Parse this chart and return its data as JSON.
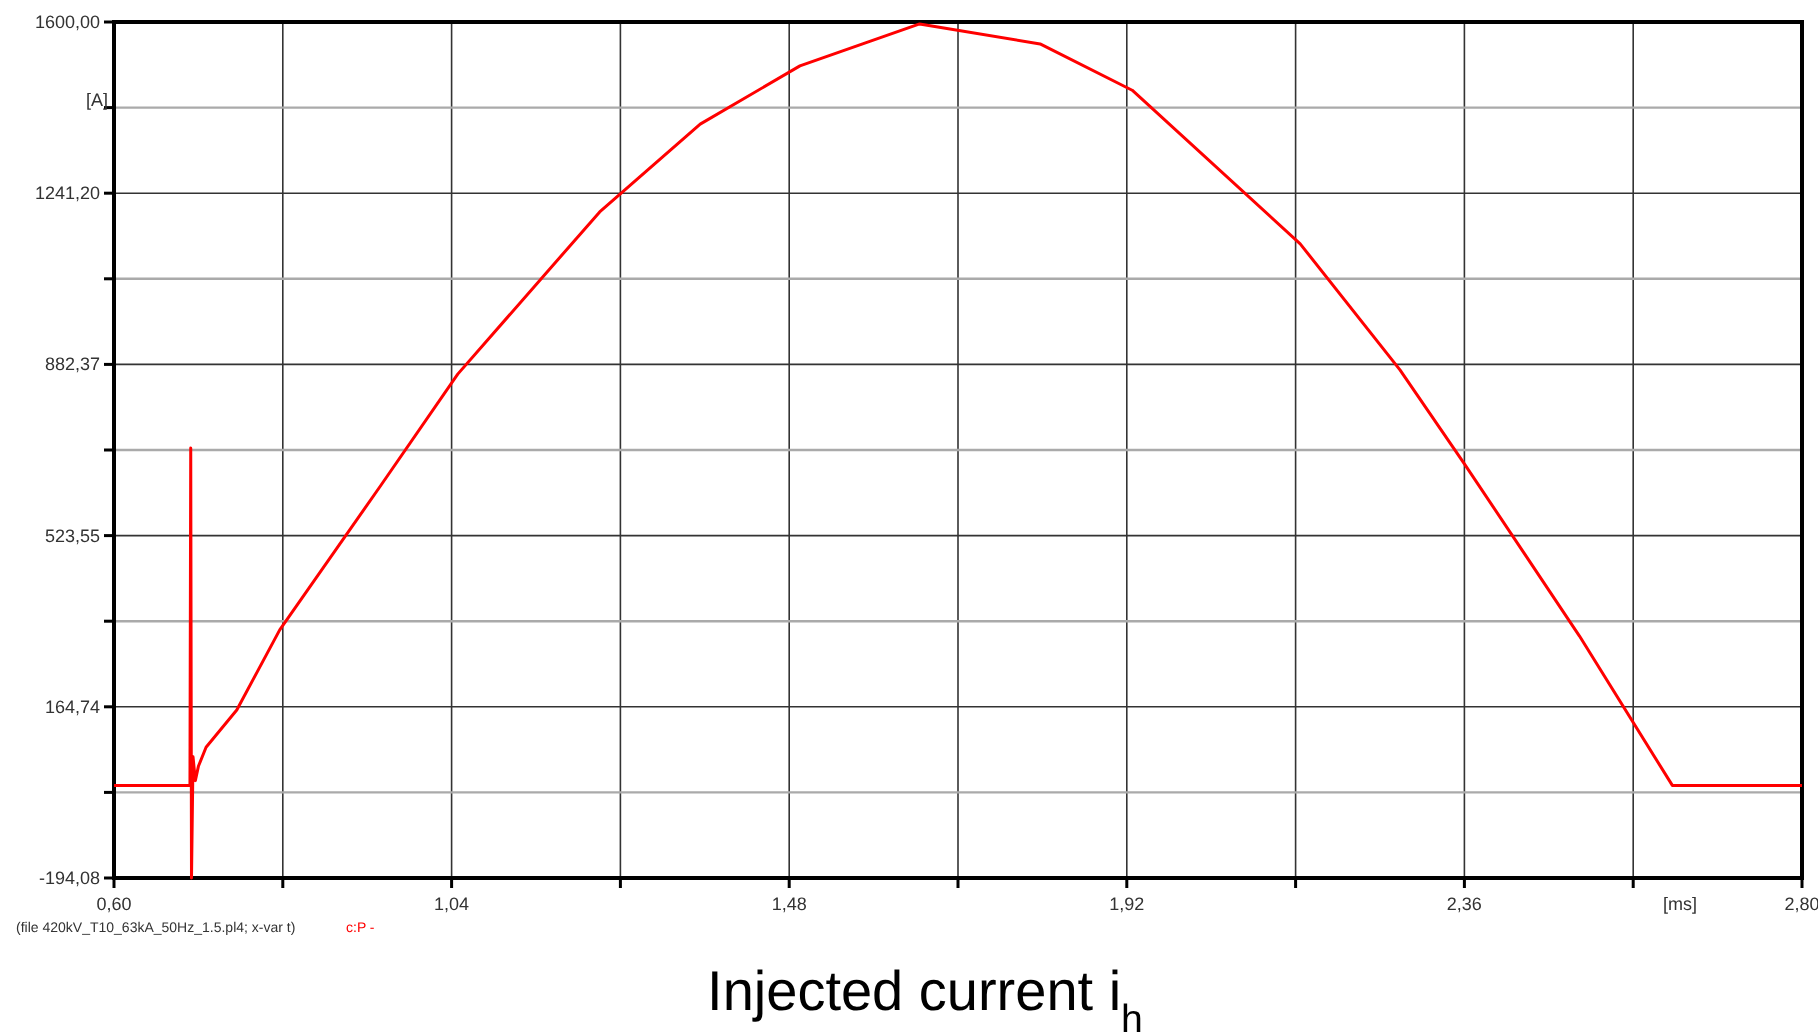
{
  "chart_data": {
    "type": "line",
    "title": "Injected current i$_{h}$",
    "xlabel": "[ms]",
    "ylabel": "[A]",
    "annotations": [
      "(file 420kV_T10_63kA_50Hz_1.5.pl4; x-var t)"
    ],
    "xlim": [
      0.6,
      2.8
    ],
    "ylim": [
      -194.08,
      1600
    ],
    "xticks": [
      {
        "value": 0.6,
        "label": "0,60"
      },
      {
        "value": 0.82,
        "label": null
      },
      {
        "value": 1.04,
        "label": "1,04"
      },
      {
        "value": 1.26,
        "label": null
      },
      {
        "value": 1.48,
        "label": "1,48"
      },
      {
        "value": 1.7,
        "label": null
      },
      {
        "value": 1.92,
        "label": "1,92"
      },
      {
        "value": 2.14,
        "label": null
      },
      {
        "value": 2.36,
        "label": "2,36"
      },
      {
        "value": 2.58,
        "label": null
      },
      {
        "value": 2.8,
        "label": "2,80"
      }
    ],
    "yticks": [
      {
        "value": -194.08,
        "label": "-194,08"
      },
      {
        "value": -14.67,
        "label": null
      },
      {
        "value": 164.74,
        "label": "164,74"
      },
      {
        "value": 344.15,
        "label": null
      },
      {
        "value": 523.55,
        "label": "523,55"
      },
      {
        "value": 702.96,
        "label": null
      },
      {
        "value": 882.37,
        "label": "882,37"
      },
      {
        "value": 1061.78,
        "label": null
      },
      {
        "value": 1241.2,
        "label": "1241,20"
      },
      {
        "value": 1420.6,
        "label": null
      },
      {
        "value": 1600,
        "label": "1600,00"
      }
    ],
    "grid": true,
    "legend": "bottom left",
    "marker": "none",
    "line_style": "solid",
    "series": [
      {
        "name": "c:P -",
        "color": "#ff0000",
        "x": [
          0.6,
          0.699,
          0.7,
          0.701,
          0.703,
          0.706,
          0.71,
          0.72,
          0.76,
          0.816,
          0.947,
          1.048,
          1.233,
          1.364,
          1.494,
          1.65,
          1.807,
          1.927,
          2.146,
          2.276,
          2.36,
          2.51,
          2.631,
          2.8
        ],
        "values": [
          0,
          0,
          707,
          -194.08,
          60,
          10,
          40,
          80,
          158,
          326,
          627,
          862,
          1202,
          1386,
          1508,
          1596,
          1554,
          1457,
          1135,
          871,
          674,
          313,
          0,
          0
        ]
      }
    ]
  }
}
